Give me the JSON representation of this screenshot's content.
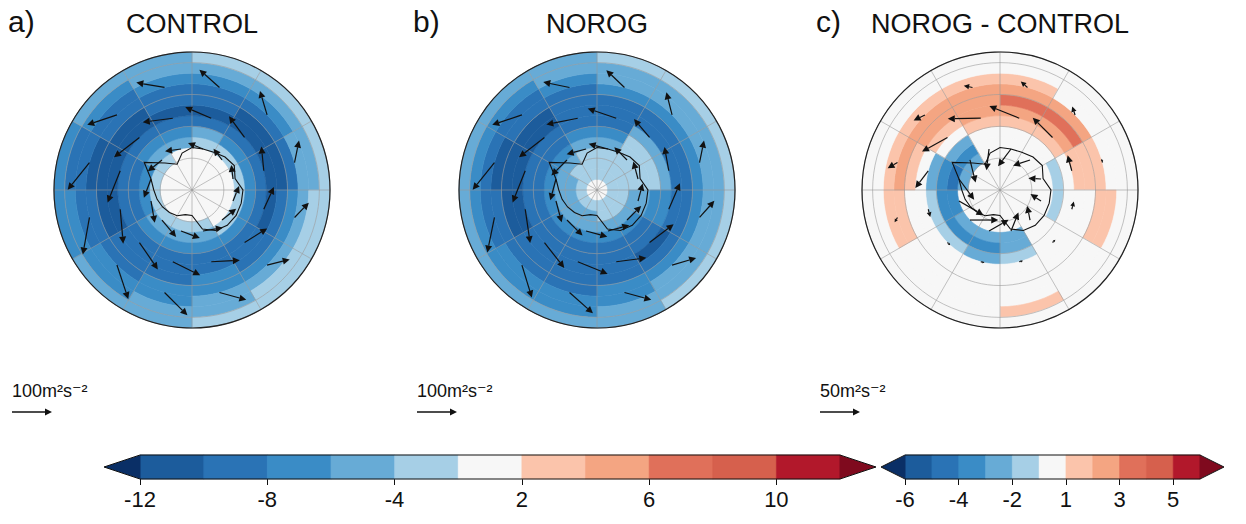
{
  "chart_data": [
    {
      "type": "map",
      "panel": "a)",
      "title": "CONTROL",
      "xlim": [
        0,
        360
      ],
      "xticks": [
        0,
        30,
        60,
        90,
        120,
        150,
        180,
        210,
        240,
        270,
        300,
        330
      ],
      "ylim": [
        -90,
        -25
      ],
      "yticks": [
        -90,
        -75,
        -60,
        -45,
        -30
      ],
      "grid": true,
      "tick_labels": false,
      "lat_edges": [
        -90,
        -85,
        -80,
        -75,
        -70,
        -65,
        -60,
        -55,
        -50,
        -45,
        -40,
        -35,
        -30,
        -25
      ],
      "lon_edges": [
        0,
        30,
        60,
        90,
        120,
        150,
        180,
        210,
        240,
        270,
        300,
        330,
        360
      ],
      "values": [
        [
          0,
          0,
          0,
          0,
          0,
          0,
          0,
          0,
          0,
          0,
          0,
          0
        ],
        [
          0,
          0,
          0,
          0,
          0,
          0,
          0,
          0,
          0,
          0,
          0,
          0
        ],
        [
          0,
          0,
          0,
          0,
          0,
          -1,
          -1,
          -1,
          -1,
          0,
          0,
          0
        ],
        [
          -1,
          -1,
          0,
          0,
          -1,
          -2,
          -3,
          -3,
          -3,
          -3,
          -2,
          -1
        ],
        [
          -3,
          -3,
          -2,
          -2,
          -3,
          -5,
          -5,
          -5,
          -6,
          -6,
          -5,
          -4
        ],
        [
          -5,
          -6,
          -6,
          -6,
          -6,
          -7,
          -7,
          -7,
          -8,
          -8,
          -7,
          -6
        ],
        [
          -8,
          -9,
          -9,
          -9,
          -8,
          -8,
          -8,
          -8,
          -9,
          -9,
          -9,
          -8
        ],
        [
          -10,
          -10,
          -10,
          -10,
          -9,
          -8,
          -8,
          -9,
          -10,
          -11,
          -10,
          -10
        ],
        [
          -9,
          -10,
          -10,
          -9,
          -8,
          -7,
          -8,
          -9,
          -10,
          -11,
          -10,
          -9
        ],
        [
          -8,
          -8,
          -8,
          -7,
          -6,
          -6,
          -7,
          -8,
          -9,
          -10,
          -9,
          -8
        ],
        [
          -6,
          -6,
          -5,
          -5,
          -5,
          -5,
          -6,
          -7,
          -8,
          -9,
          -8,
          -7
        ],
        [
          -4,
          -4,
          -4,
          -3,
          -3,
          -4,
          -5,
          -6,
          -7,
          -8,
          -7,
          -5
        ],
        [
          -3,
          -3,
          -3,
          -2,
          -2,
          -3,
          -4,
          -5,
          -6,
          -6,
          -5,
          -4
        ]
      ],
      "vectors": {
        "lat": [
          -70,
          -55,
          -40
        ],
        "lon": [
          15,
          45,
          75,
          105,
          135,
          165,
          195,
          225,
          255,
          285,
          315,
          345
        ],
        "u": [
          [
            -40,
            -35,
            -35,
            -40,
            -45,
            -50,
            -50,
            -55,
            -55,
            -50,
            -45,
            -40
          ],
          [
            -70,
            -65,
            -60,
            -60,
            -65,
            -70,
            -75,
            -80,
            -85,
            -85,
            -80,
            -75
          ],
          [
            -60,
            -55,
            -50,
            -45,
            -50,
            -60,
            -70,
            -80,
            -85,
            -80,
            -70,
            -65
          ]
        ],
        "v": [
          [
            5,
            5,
            5,
            5,
            5,
            5,
            5,
            5,
            5,
            5,
            5,
            5
          ],
          [
            10,
            10,
            10,
            10,
            15,
            15,
            15,
            15,
            15,
            10,
            10,
            10
          ],
          [
            30,
            30,
            25,
            25,
            30,
            35,
            40,
            40,
            40,
            35,
            35,
            30
          ]
        ]
      },
      "reference_vector": {
        "value": 100,
        "label": "100m²s⁻²"
      }
    },
    {
      "type": "map",
      "panel": "b)",
      "title": "NOROG",
      "xlim": [
        0,
        360
      ],
      "xticks": [
        0,
        30,
        60,
        90,
        120,
        150,
        180,
        210,
        240,
        270,
        300,
        330
      ],
      "ylim": [
        -90,
        -25
      ],
      "yticks": [
        -90,
        -75,
        -60,
        -45,
        -30
      ],
      "grid": true,
      "tick_labels": false,
      "lat_edges": [
        -90,
        -85,
        -80,
        -75,
        -70,
        -65,
        -60,
        -55,
        -50,
        -45,
        -40,
        -35,
        -30,
        -25
      ],
      "lon_edges": [
        0,
        30,
        60,
        90,
        120,
        150,
        180,
        210,
        240,
        270,
        300,
        330,
        360
      ],
      "values": [
        [
          0,
          0,
          0,
          0,
          0,
          0,
          0,
          0,
          0,
          0,
          0,
          0
        ],
        [
          -3,
          -2,
          -3,
          -3,
          -3,
          -3,
          -3,
          -3,
          -3,
          -3,
          -3,
          -3
        ],
        [
          -3,
          -3,
          -3,
          -3,
          -3,
          -3,
          -4,
          -4,
          -4,
          -4,
          -3,
          -3
        ],
        [
          -3,
          -3,
          -3,
          -4,
          -4,
          -5,
          -5,
          -5,
          -5,
          -5,
          -4,
          -3
        ],
        [
          -4,
          -3,
          -3,
          -5,
          -6,
          -7,
          -7,
          -7,
          -7,
          -7,
          -6,
          -5
        ],
        [
          -6,
          -3,
          -3,
          -6,
          -8,
          -8,
          -8,
          -8,
          -8,
          -8,
          -8,
          -7
        ],
        [
          -8,
          -5,
          -5,
          -7,
          -9,
          -9,
          -9,
          -9,
          -9,
          -9,
          -9,
          -9
        ],
        [
          -9,
          -8,
          -8,
          -9,
          -10,
          -9,
          -9,
          -9,
          -10,
          -10,
          -10,
          -9
        ],
        [
          -9,
          -9,
          -9,
          -9,
          -9,
          -8,
          -9,
          -9,
          -10,
          -11,
          -10,
          -9
        ],
        [
          -7,
          -7,
          -7,
          -7,
          -7,
          -7,
          -8,
          -8,
          -9,
          -11,
          -9,
          -8
        ],
        [
          -5,
          -5,
          -5,
          -5,
          -5,
          -6,
          -7,
          -7,
          -8,
          -9,
          -8,
          -6
        ],
        [
          -4,
          -4,
          -4,
          -4,
          -4,
          -5,
          -6,
          -6,
          -7,
          -7,
          -6,
          -5
        ],
        [
          -3,
          -3,
          -3,
          -3,
          -3,
          -4,
          -4,
          -5,
          -5,
          -5,
          -5,
          -4
        ]
      ],
      "vectors": {
        "lat": [
          -70,
          -55,
          -40
        ],
        "lon": [
          15,
          45,
          75,
          105,
          135,
          165,
          195,
          225,
          255,
          285,
          315,
          345
        ],
        "u": [
          [
            -50,
            -45,
            -45,
            -45,
            -50,
            -55,
            -55,
            -55,
            -55,
            -55,
            -55,
            -50
          ],
          [
            -75,
            -60,
            -60,
            -70,
            -75,
            -75,
            -80,
            -80,
            -85,
            -85,
            -80,
            -80
          ],
          [
            -55,
            -50,
            -50,
            -50,
            -55,
            -60,
            -70,
            -75,
            -80,
            -80,
            -70,
            -60
          ]
        ],
        "v": [
          [
            0,
            0,
            0,
            0,
            0,
            0,
            0,
            0,
            0,
            0,
            0,
            0
          ],
          [
            5,
            5,
            5,
            10,
            10,
            10,
            10,
            10,
            10,
            10,
            10,
            5
          ],
          [
            30,
            30,
            25,
            25,
            30,
            35,
            35,
            40,
            40,
            35,
            35,
            30
          ]
        ]
      },
      "reference_vector": {
        "value": 100,
        "label": "100m²s⁻²"
      }
    },
    {
      "type": "map",
      "panel": "c)",
      "title": "NOROG - CONTROL",
      "xlim": [
        0,
        360
      ],
      "xticks": [
        0,
        30,
        60,
        90,
        120,
        150,
        180,
        210,
        240,
        270,
        300,
        330
      ],
      "ylim": [
        -90,
        -25
      ],
      "yticks": [
        -90,
        -75,
        -60,
        -45,
        -30
      ],
      "grid": true,
      "tick_labels": false,
      "lat_edges": [
        -90,
        -85,
        -80,
        -75,
        -70,
        -65,
        -60,
        -55,
        -50,
        -45,
        -40,
        -35,
        -30,
        -25
      ],
      "lon_edges": [
        0,
        30,
        60,
        90,
        120,
        150,
        180,
        210,
        240,
        270,
        300,
        330,
        360
      ],
      "values": [
        [
          0,
          0,
          0,
          0,
          0,
          0,
          0,
          0,
          0,
          0,
          0,
          0
        ],
        [
          0,
          0,
          0,
          0,
          0,
          0,
          0,
          0,
          0,
          0,
          0,
          0
        ],
        [
          0,
          0,
          0,
          0,
          0,
          0,
          0,
          0,
          0,
          0,
          0,
          0
        ],
        [
          0,
          0,
          0,
          0,
          0,
          0,
          0,
          0,
          0,
          -2,
          -2,
          0
        ],
        [
          0,
          0,
          0,
          0,
          0,
          -2,
          -2,
          -2,
          -3,
          -4,
          -3,
          0
        ],
        [
          0,
          0,
          -1.5,
          -1.5,
          0,
          -2,
          -3,
          -3,
          -3,
          -3,
          -2,
          0
        ],
        [
          1.5,
          2,
          0,
          0,
          0,
          -1.5,
          -2,
          -1.5,
          -1.5,
          -2,
          0,
          1.5
        ],
        [
          3,
          3,
          1.5,
          0,
          0,
          0,
          0,
          0,
          0,
          0,
          1.5,
          2.5
        ],
        [
          4,
          3.5,
          2,
          0,
          0,
          0,
          0,
          0,
          0,
          1.5,
          2.5,
          3
        ],
        [
          2.5,
          2.5,
          1.5,
          1.5,
          0,
          0,
          0,
          0,
          1.5,
          2.5,
          2.5,
          2.5
        ],
        [
          1.5,
          0,
          0,
          1.5,
          0,
          0,
          0,
          0,
          1.5,
          2,
          1.5,
          1.5
        ],
        [
          0,
          0,
          0,
          0,
          0,
          1.5,
          0,
          0,
          0,
          0,
          0,
          0
        ],
        [
          0,
          0,
          0,
          0,
          0,
          0,
          0,
          0,
          0,
          0,
          0,
          0
        ]
      ],
      "vectors": {
        "lat": [
          -70,
          -55,
          -40
        ],
        "lon": [
          15,
          45,
          75,
          105,
          135,
          165,
          195,
          225,
          255,
          285,
          315,
          345
        ],
        "u": [
          [
            -10,
            -10,
            -5,
            -5,
            -10,
            -15,
            -20,
            -25,
            -25,
            -20,
            -15,
            -10
          ],
          [
            -40,
            -35,
            -20,
            -10,
            -5,
            -5,
            -5,
            -5,
            -10,
            -25,
            -35,
            -40
          ],
          [
            -10,
            -10,
            -5,
            0,
            0,
            0,
            0,
            0,
            -5,
            -10,
            -15,
            -10
          ]
        ],
        "v": [
          [
            -25,
            -20,
            -15,
            -15,
            -15,
            -20,
            -20,
            -25,
            -25,
            -25,
            -25,
            -25
          ],
          [
            5,
            0,
            0,
            0,
            0,
            0,
            0,
            0,
            0,
            10,
            10,
            10
          ],
          [
            5,
            5,
            0,
            0,
            0,
            0,
            0,
            0,
            5,
            10,
            5,
            5
          ]
        ]
      },
      "reference_vector": {
        "value": 50,
        "label": "50m²s⁻²"
      }
    }
  ],
  "colorbars": [
    {
      "panels": [
        "a)",
        "b)"
      ],
      "bounds": [
        -12,
        -10,
        -8,
        -6,
        -4,
        -2,
        2,
        4,
        6,
        8,
        10,
        12
      ],
      "ticks": [
        -12,
        -8,
        -4,
        2,
        6,
        10
      ],
      "colors": [
        "#0a2f66",
        "#1c5c9c",
        "#2a73b5",
        "#3a8cc6",
        "#67abd6",
        "#a6cfe6",
        "#f7f7f7",
        "#fbc4ab",
        "#f4a582",
        "#e0705a",
        "#d6604d",
        "#b2182b",
        "#7f0a1e"
      ]
    },
    {
      "panels": [
        "c)"
      ],
      "bounds": [
        -6,
        -5,
        -4,
        -3,
        -2,
        -1,
        1,
        2,
        3,
        4,
        5,
        6
      ],
      "ticks": [
        -6,
        -4,
        -2,
        1,
        3,
        5
      ],
      "colors": [
        "#0a2f66",
        "#1c5c9c",
        "#2a73b5",
        "#3a8cc6",
        "#67abd6",
        "#a6cfe6",
        "#f7f7f7",
        "#fbc4ab",
        "#f4a582",
        "#e0705a",
        "#d6604d",
        "#b2182b",
        "#7f0a1e"
      ]
    }
  ],
  "antarctic_coast": {
    "lon": [
      0,
      15,
      30,
      45,
      60,
      75,
      90,
      105,
      120,
      135,
      150,
      165,
      180,
      195,
      210,
      225,
      240,
      255,
      270,
      285,
      300,
      315,
      330,
      345
    ],
    "lat": [
      -70,
      -70,
      -69.5,
      -68,
      -67,
      -69,
      -66,
      -66,
      -66,
      -66.5,
      -68,
      -71,
      -78,
      -78,
      -76,
      -75,
      -74,
      -73,
      -72,
      -70,
      -64,
      -72,
      -76,
      -72
    ]
  }
}
